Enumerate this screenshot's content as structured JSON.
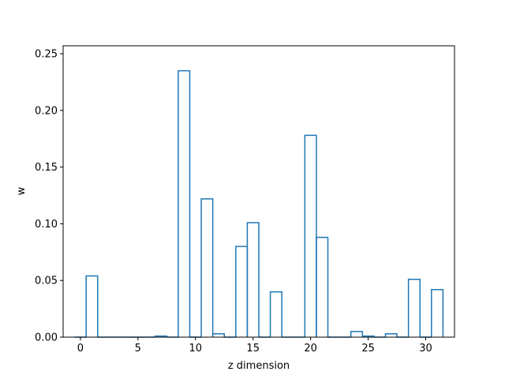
{
  "chart_data": {
    "type": "bar",
    "style": "step-histogram",
    "xlabel": "z dimension",
    "ylabel": "w",
    "xlim": [
      -1.5,
      32.5
    ],
    "ylim": [
      0,
      0.257
    ],
    "x_ticks": [
      0,
      5,
      10,
      15,
      20,
      25,
      30
    ],
    "x_tick_labels": [
      "0",
      "5",
      "10",
      "15",
      "20",
      "25",
      "30"
    ],
    "y_ticks": [
      0.0,
      0.05,
      0.1,
      0.15,
      0.2,
      0.25
    ],
    "y_tick_labels": [
      "0.00",
      "0.05",
      "0.10",
      "0.15",
      "0.20",
      "0.25"
    ],
    "categories": [
      0,
      1,
      2,
      3,
      4,
      5,
      6,
      7,
      8,
      9,
      10,
      11,
      12,
      13,
      14,
      15,
      16,
      17,
      18,
      19,
      20,
      21,
      22,
      23,
      24,
      25,
      26,
      27,
      28,
      29,
      30,
      31
    ],
    "values": [
      0.0,
      0.054,
      0.0,
      0.0,
      0.0,
      0.0,
      0.0,
      0.001,
      0.0,
      0.235,
      0.0,
      0.122,
      0.003,
      0.0,
      0.08,
      0.101,
      0.0,
      0.04,
      0.0,
      0.0,
      0.178,
      0.088,
      0.0,
      0.0,
      0.005,
      0.001,
      0.0,
      0.003,
      0.0,
      0.051,
      0.0,
      0.042
    ],
    "grid": false,
    "legend": "none",
    "colors": {
      "series": "#1f77b4",
      "axes": "#000000",
      "background": "#ffffff"
    }
  }
}
